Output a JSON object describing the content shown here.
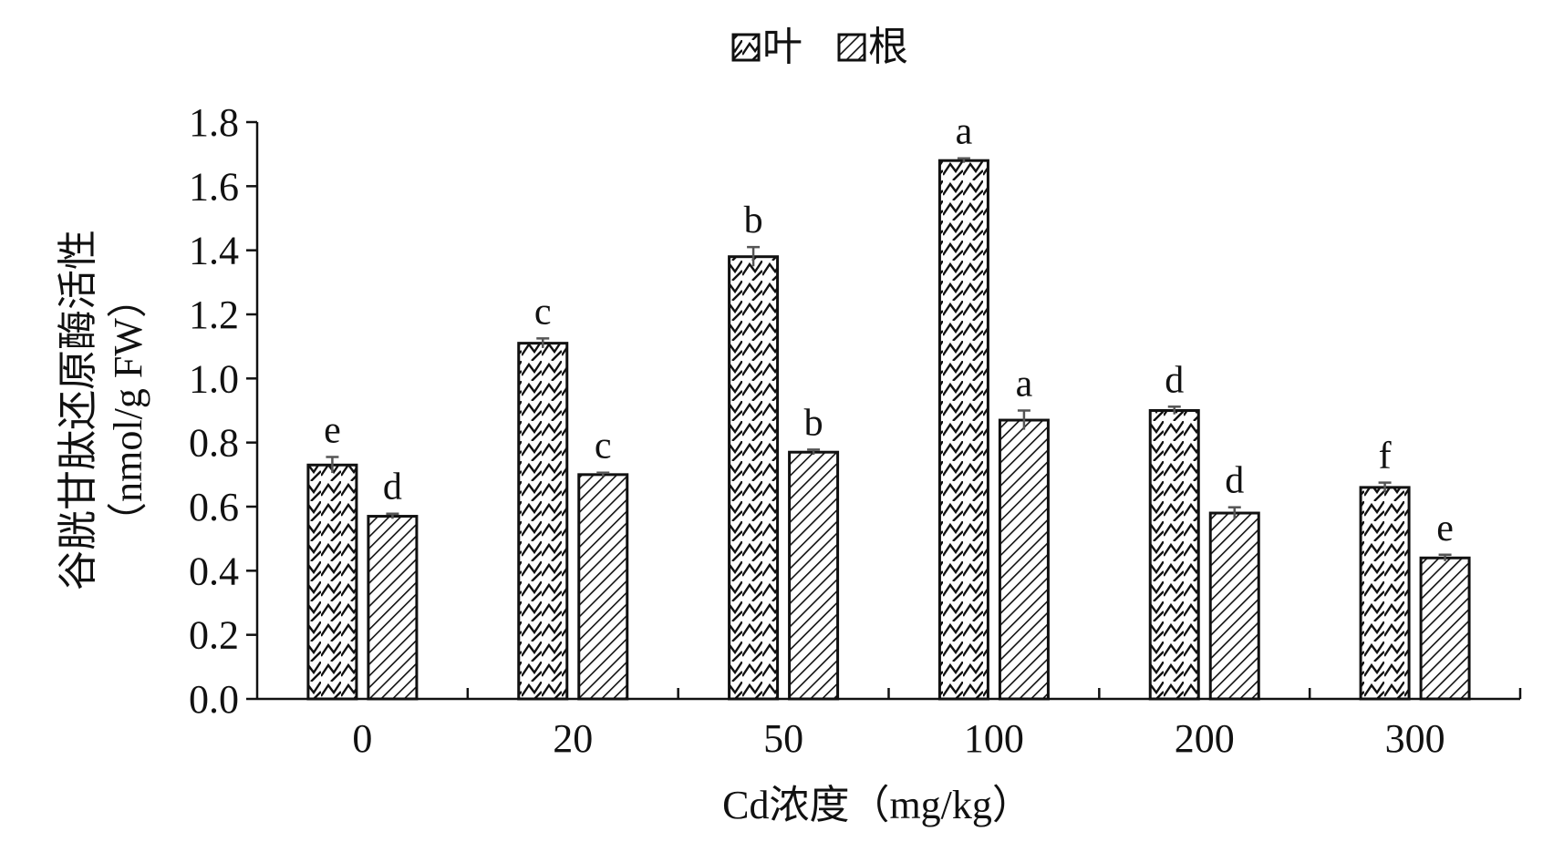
{
  "chart_data": {
    "type": "bar",
    "xlabel": "Cd浓度（mg/kg）",
    "ylabel_line1": "谷胱甘肽还原酶活性",
    "ylabel_line2": "（nmol/g FW）",
    "ylim": [
      0.0,
      1.8
    ],
    "yticks": [
      "0.0",
      "0.2",
      "0.4",
      "0.6",
      "0.8",
      "1.0",
      "1.2",
      "1.4",
      "1.6",
      "1.8"
    ],
    "categories": [
      "0",
      "20",
      "50",
      "100",
      "200",
      "300"
    ],
    "legend_position": "top-center",
    "grid": false,
    "series": [
      {
        "name": "叶",
        "pattern": "zigzag",
        "values": [
          0.73,
          1.11,
          1.38,
          1.68,
          0.9,
          0.66
        ],
        "errors": [
          0.025,
          0.015,
          0.03,
          0.007,
          0.012,
          0.015
        ],
        "significance": [
          "e",
          "c",
          "b",
          "a",
          "d",
          "f"
        ]
      },
      {
        "name": "根",
        "pattern": "diagonal",
        "values": [
          0.57,
          0.7,
          0.77,
          0.87,
          0.58,
          0.44
        ],
        "errors": [
          0.008,
          0.006,
          0.008,
          0.03,
          0.018,
          0.01
        ],
        "significance": [
          "d",
          "c",
          "b",
          "a",
          "d",
          "e"
        ]
      }
    ],
    "colors": {
      "stroke": "#111111",
      "error_bar": "#555555",
      "background": "#ffffff"
    }
  }
}
